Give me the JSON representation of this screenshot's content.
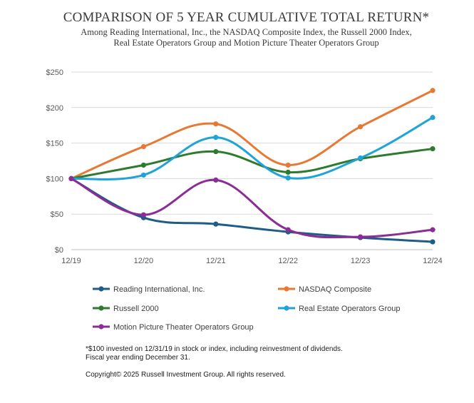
{
  "chart_data": {
    "type": "line",
    "title": "COMPARISON OF 5 YEAR CUMULATIVE TOTAL RETURN*",
    "subtitle_line1": "Among Reading International, Inc., the NASDAQ Composite Index, the Russell 2000 Index,",
    "subtitle_line2": "Real Estate Operators Group and Motion Picture Theater Operators Group",
    "categories": [
      "12/19",
      "12/20",
      "12/21",
      "12/22",
      "12/23",
      "12/24"
    ],
    "y_ticks": [
      "$0",
      "$50",
      "$100",
      "$150",
      "$200",
      "$250"
    ],
    "ylim": [
      0,
      250
    ],
    "grid": true,
    "legend_position": "bottom",
    "series": [
      {
        "name": "Reading International, Inc.",
        "color": "#1f5c87",
        "values": [
          100,
          45,
          36,
          25,
          17,
          11
        ]
      },
      {
        "name": "NASDAQ Composite",
        "color": "#e67a35",
        "values": [
          100,
          145,
          177,
          119,
          173,
          224
        ]
      },
      {
        "name": "Russell 2000",
        "color": "#2e7a2e",
        "values": [
          100,
          119,
          138,
          109,
          128,
          142
        ]
      },
      {
        "name": "Real Estate Operators Group",
        "color": "#1fa3d8",
        "values": [
          100,
          105,
          158,
          101,
          129,
          186
        ]
      },
      {
        "name": "Motion Picture Theater Operators Group",
        "color": "#8a2e95",
        "values": [
          100,
          49,
          98,
          28,
          18,
          28
        ]
      }
    ]
  },
  "footnote": {
    "line1": "*$100 invested on 12/31/19 in stock or index, including reinvestment of dividends.",
    "line2": "Fiscal year ending December 31.",
    "copyright": "Copyright© 2025 Russell Investment Group. All rights reserved."
  }
}
